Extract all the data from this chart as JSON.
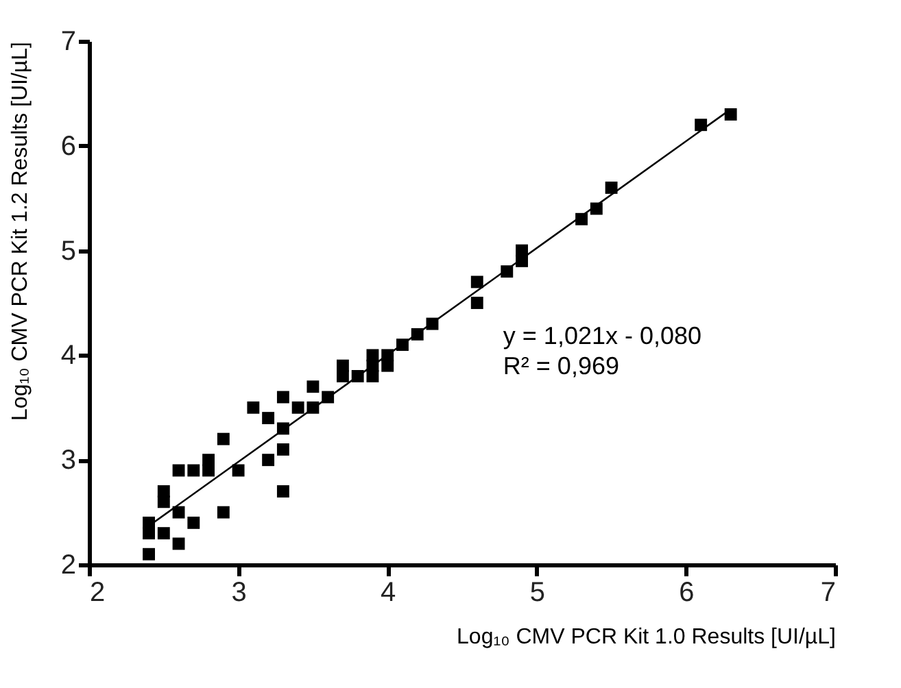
{
  "chart_data": {
    "type": "scatter",
    "xlabel": "Log₁₀ CMV PCR Kit 1.0 Results [UI/µL]",
    "ylabel": "Log₁₀ CMV PCR Kit 1.2 Results [UI/µL]",
    "xlim": [
      2,
      7
    ],
    "ylim": [
      2,
      7
    ],
    "xticks": [
      2,
      3,
      4,
      5,
      6,
      7
    ],
    "yticks": [
      2,
      3,
      4,
      5,
      6,
      7
    ],
    "grid": false,
    "marker": "square",
    "annotations": [
      "y      =  1,021x - 0,080",
      "R²     =  0,969"
    ],
    "series": [
      {
        "color": "#000000",
        "x": [
          2.4,
          2.4,
          2.4,
          2.5,
          2.5,
          2.5,
          2.6,
          2.6,
          2.6,
          2.7,
          2.7,
          2.8,
          2.8,
          2.9,
          2.9,
          3.0,
          3.1,
          3.2,
          3.2,
          3.3,
          3.3,
          3.3,
          3.3,
          3.4,
          3.5,
          3.5,
          3.6,
          3.7,
          3.7,
          3.8,
          3.9,
          3.9,
          3.9,
          4.0,
          4.0,
          4.1,
          4.2,
          4.3,
          4.6,
          4.6,
          4.8,
          4.9,
          4.9,
          5.3,
          5.4,
          5.5,
          6.1,
          6.3
        ],
        "values": [
          2.1,
          2.3,
          2.4,
          2.3,
          2.6,
          2.7,
          2.2,
          2.5,
          2.9,
          2.4,
          2.9,
          2.9,
          3.0,
          2.5,
          3.2,
          2.9,
          3.5,
          3.4,
          3.0,
          2.7,
          3.1,
          3.3,
          3.6,
          3.5,
          3.5,
          3.7,
          3.6,
          3.8,
          3.9,
          3.8,
          3.9,
          4.0,
          3.8,
          3.9,
          4.0,
          4.1,
          4.2,
          4.3,
          4.5,
          4.7,
          4.8,
          4.9,
          5.0,
          5.3,
          5.4,
          5.6,
          6.2,
          6.3
        ]
      },
      {
        "type": "line",
        "color": "#000000",
        "x": [
          2.4,
          6.3
        ],
        "values": [
          2.37,
          6.35
        ],
        "marker": "none",
        "line_style": "solid"
      }
    ]
  }
}
